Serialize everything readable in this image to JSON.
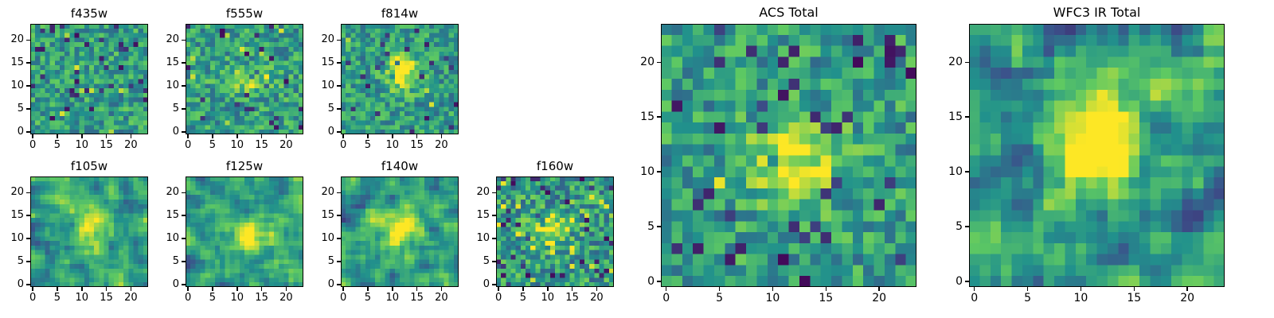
{
  "figure": {
    "background": "#ffffff",
    "axis_color": "#000000"
  },
  "chart_data": {
    "type": "heatmap",
    "layout": "3 small panels top row, 4 small panels bottom row, 2 large panels right",
    "colormap": {
      "name": "viridis",
      "stops": [
        {
          "t": 0.0,
          "color": "#440154"
        },
        {
          "t": 0.25,
          "color": "#3b528b"
        },
        {
          "t": 0.5,
          "color": "#21918c"
        },
        {
          "t": 0.75,
          "color": "#5ec962"
        },
        {
          "t": 1.0,
          "color": "#fde725"
        }
      ]
    },
    "panels": [
      {
        "id": "f435w",
        "title": "f435w",
        "n": 24,
        "xticks": [
          0,
          5,
          10,
          15,
          20
        ],
        "yticks": [
          0,
          5,
          10,
          15,
          20
        ],
        "seed": 101,
        "noise": {
          "low": 0.34,
          "high": 0.78,
          "dark_prob": 0.06,
          "dark_low": 0.02,
          "dark_high": 0.2,
          "bright_prob": 0.01
        },
        "smooth": 0,
        "gain": 1,
        "source": null
      },
      {
        "id": "f555w",
        "title": "f555w",
        "n": 24,
        "xticks": [
          0,
          5,
          10,
          15,
          20
        ],
        "yticks": [
          0,
          5,
          10,
          15,
          20
        ],
        "seed": 202,
        "noise": {
          "low": 0.34,
          "high": 0.78,
          "dark_prob": 0.05,
          "dark_low": 0.02,
          "dark_high": 0.2,
          "bright_prob": 0.012
        },
        "smooth": 0,
        "gain": 1,
        "source": {
          "x": 12,
          "y": 11,
          "amp": 0.32,
          "sx": 3.5,
          "sy": 1.8
        }
      },
      {
        "id": "f814w",
        "title": "f814w",
        "n": 24,
        "xticks": [
          0,
          5,
          10,
          15,
          20
        ],
        "yticks": [
          0,
          5,
          10,
          15,
          20
        ],
        "seed": 303,
        "noise": {
          "low": 0.34,
          "high": 0.76,
          "dark_prob": 0.05,
          "dark_low": 0.02,
          "dark_high": 0.2,
          "bright_prob": 0.005
        },
        "smooth": 0,
        "gain": 1,
        "source": {
          "x": 12,
          "y": 13,
          "amp": 0.52,
          "sx": 2.2,
          "sy": 2.6
        }
      },
      {
        "id": "f105w",
        "title": "f105w",
        "n": 24,
        "xticks": [
          0,
          5,
          10,
          15,
          20
        ],
        "yticks": [
          0,
          5,
          10,
          15,
          20
        ],
        "seed": 404,
        "noise": {
          "low": 0.25,
          "high": 0.85,
          "dark_prob": 0.06,
          "dark_low": 0.02,
          "dark_high": 0.2,
          "bright_prob": 0.01
        },
        "smooth": 1,
        "gain": 1.7,
        "source": {
          "x": 11,
          "y": 13,
          "amp": 0.45,
          "sx": 2.0,
          "sy": 3.5
        }
      },
      {
        "id": "f125w",
        "title": "f125w",
        "n": 24,
        "xticks": [
          0,
          5,
          10,
          15,
          20
        ],
        "yticks": [
          0,
          5,
          10,
          15,
          20
        ],
        "seed": 505,
        "noise": {
          "low": 0.25,
          "high": 0.85,
          "dark_prob": 0.06,
          "dark_low": 0.02,
          "dark_high": 0.2,
          "bright_prob": 0.01
        },
        "smooth": 1,
        "gain": 1.7,
        "source": {
          "x": 12,
          "y": 11,
          "amp": 0.48,
          "sx": 3.0,
          "sy": 2.4
        }
      },
      {
        "id": "f140w",
        "title": "f140w",
        "n": 24,
        "xticks": [
          0,
          5,
          10,
          15,
          20
        ],
        "yticks": [
          0,
          5,
          10,
          15,
          20
        ],
        "seed": 606,
        "noise": {
          "low": 0.25,
          "high": 0.85,
          "dark_prob": 0.06,
          "dark_low": 0.02,
          "dark_high": 0.2,
          "bright_prob": 0.01
        },
        "smooth": 1,
        "gain": 1.7,
        "source": {
          "x": 12,
          "y": 12,
          "amp": 0.52,
          "sx": 3.0,
          "sy": 3.0
        }
      },
      {
        "id": "f160w",
        "title": "f160w",
        "n": 24,
        "xticks": [
          0,
          5,
          10,
          15,
          20
        ],
        "yticks": [
          0,
          5,
          10,
          15,
          20
        ],
        "seed": 707,
        "noise": {
          "low": 0.3,
          "high": 0.8,
          "dark_prob": 0.06,
          "dark_low": 0.02,
          "dark_high": 0.2,
          "bright_prob": 0.035
        },
        "smooth": 0,
        "gain": 1,
        "source": {
          "x": 11,
          "y": 12,
          "amp": 0.5,
          "sx": 3.0,
          "sy": 2.0
        }
      },
      {
        "id": "acs_total",
        "title": "ACS Total",
        "n": 24,
        "xticks": [
          0,
          5,
          10,
          15,
          20
        ],
        "yticks": [
          0,
          5,
          10,
          15,
          20
        ],
        "seed": 808,
        "noise": {
          "low": 0.34,
          "high": 0.78,
          "dark_prob": 0.08,
          "dark_low": 0.02,
          "dark_high": 0.2,
          "bright_prob": 0.005
        },
        "smooth": 0,
        "gain": 1,
        "source": {
          "x": 12,
          "y": 11,
          "amp": 0.45,
          "sx": 3.0,
          "sy": 2.5
        }
      },
      {
        "id": "wfc3_total",
        "title": "WFC3 IR Total",
        "n": 24,
        "xticks": [
          0,
          5,
          10,
          15,
          20
        ],
        "yticks": [
          0,
          5,
          10,
          15,
          20
        ],
        "seed": 909,
        "noise": {
          "low": 0.2,
          "high": 0.9,
          "dark_prob": 0.07,
          "dark_low": 0.0,
          "dark_high": 0.1,
          "bright_prob": 0.01
        },
        "smooth": 1,
        "gain": 1.8,
        "source": {
          "x": 12,
          "y": 13,
          "amp": 0.62,
          "sx": 2.5,
          "sy": 3.5
        }
      }
    ]
  }
}
